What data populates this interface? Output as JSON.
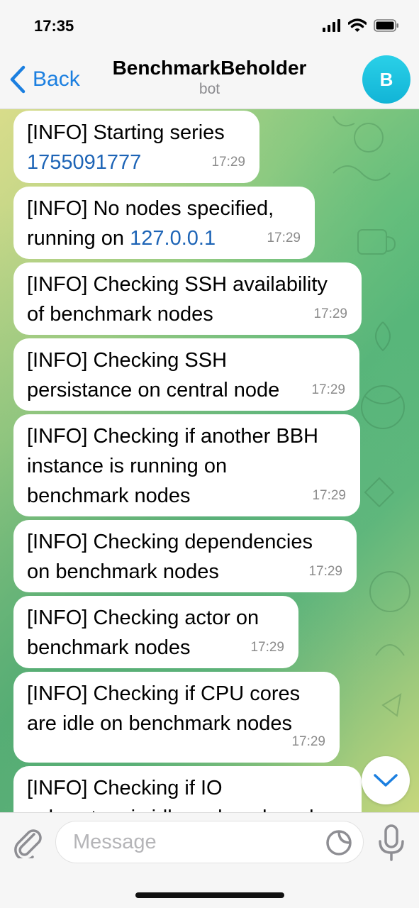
{
  "status": {
    "time": "17:35"
  },
  "header": {
    "back_label": "Back",
    "title": "BenchmarkBeholder",
    "subtitle": "bot",
    "avatar_letter": "B"
  },
  "messages": [
    {
      "line1": "[INFO] Starting series",
      "link": "1755091777",
      "time": "17:29"
    },
    {
      "line1": "[INFO] No nodes specified,",
      "line2_prefix": "running on ",
      "link": "127.0.0.1",
      "time": "17:29"
    },
    {
      "line1": "[INFO] Checking SSH availability",
      "line2": "of benchmark nodes",
      "time": "17:29"
    },
    {
      "line1": "[INFO] Checking SSH",
      "line2": "persistance on central node",
      "time": "17:29"
    },
    {
      "line1": "[INFO] Checking if another BBH",
      "line2": "instance is running on",
      "line3": "benchmark nodes",
      "time": "17:29"
    },
    {
      "line1": "[INFO] Checking dependencies",
      "line2": "on benchmark nodes",
      "time": "17:29"
    },
    {
      "line1": "[INFO] Checking actor on",
      "line2": "benchmark nodes",
      "time": "17:29"
    },
    {
      "line1": "[INFO] Checking if CPU cores",
      "line2": "are idle on benchmark nodes",
      "time": "17:29"
    },
    {
      "line1": "[INFO] Checking if IO",
      "line2": "subsystem is idle on benchmark"
    }
  ],
  "input": {
    "placeholder": "Message"
  },
  "icons": {
    "back": "chevron-left-icon",
    "attach": "paperclip-icon",
    "sticker": "sticker-icon",
    "mic": "microphone-icon",
    "scroll": "chevron-down-icon",
    "signal": "signal-icon",
    "wifi": "wifi-icon",
    "battery": "battery-icon"
  },
  "colors": {
    "accent": "#1b7fe0",
    "link": "#1d64b6",
    "avatar": "#12b4d6",
    "bubble": "#ffffff"
  }
}
